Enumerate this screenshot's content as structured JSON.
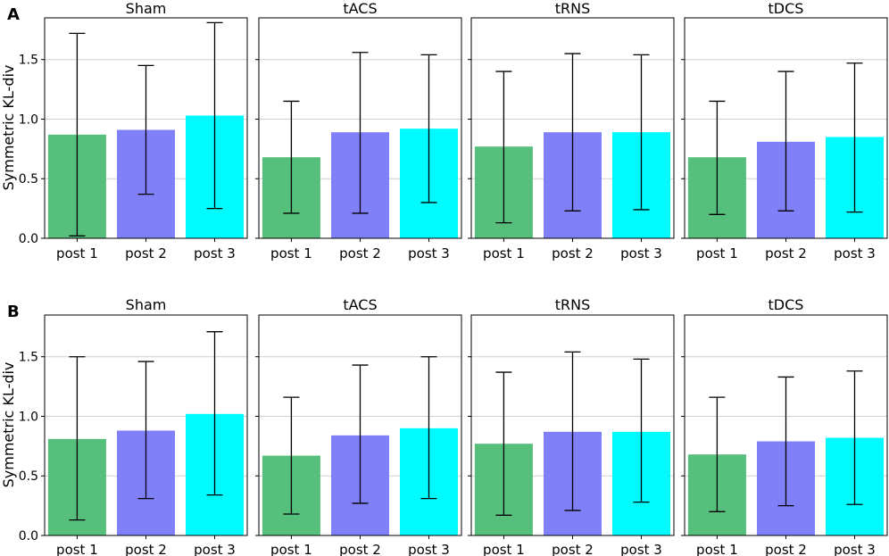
{
  "chart_data": [
    {
      "panel_letter": "A",
      "type": "bar",
      "ylabel": "Symmetric KL-div",
      "ylim": [
        0,
        1.85
      ],
      "yticks": [
        0.0,
        0.5,
        1.0,
        1.5
      ],
      "ytick_labels": [
        "0.0",
        "0.5",
        "1.0",
        "1.5"
      ],
      "grid": "horizontal",
      "categories": [
        "post 1",
        "post 2",
        "post 3"
      ],
      "colors": [
        "#55bf7b",
        "#8080f8",
        "#00fbff"
      ],
      "subplots": [
        {
          "title": "Sham",
          "values": [
            0.87,
            0.91,
            1.03
          ],
          "err_low": [
            0.02,
            0.37,
            0.25
          ],
          "err_high": [
            1.72,
            1.45,
            1.81
          ]
        },
        {
          "title": "tACS",
          "values": [
            0.68,
            0.89,
            0.92
          ],
          "err_low": [
            0.21,
            0.21,
            0.3
          ],
          "err_high": [
            1.15,
            1.56,
            1.54
          ]
        },
        {
          "title": "tRNS",
          "values": [
            0.77,
            0.89,
            0.89
          ],
          "err_low": [
            0.13,
            0.23,
            0.24
          ],
          "err_high": [
            1.4,
            1.55,
            1.54
          ]
        },
        {
          "title": "tDCS",
          "values": [
            0.68,
            0.81,
            0.85
          ],
          "err_low": [
            0.2,
            0.23,
            0.22
          ],
          "err_high": [
            1.15,
            1.4,
            1.47
          ]
        }
      ]
    },
    {
      "panel_letter": "B",
      "type": "bar",
      "ylabel": "Symmetric KL-div",
      "ylim": [
        0,
        1.85
      ],
      "yticks": [
        0.0,
        0.5,
        1.0,
        1.5
      ],
      "ytick_labels": [
        "0.0",
        "0.5",
        "1.0",
        "1.5"
      ],
      "grid": "horizontal",
      "categories": [
        "post 1",
        "post 2",
        "post 3"
      ],
      "colors": [
        "#55bf7b",
        "#8080f8",
        "#00fbff"
      ],
      "subplots": [
        {
          "title": "Sham",
          "values": [
            0.81,
            0.88,
            1.02
          ],
          "err_low": [
            0.13,
            0.31,
            0.34
          ],
          "err_high": [
            1.5,
            1.46,
            1.71
          ]
        },
        {
          "title": "tACS",
          "values": [
            0.67,
            0.84,
            0.9
          ],
          "err_low": [
            0.18,
            0.27,
            0.31
          ],
          "err_high": [
            1.16,
            1.43,
            1.5
          ]
        },
        {
          "title": "tRNS",
          "values": [
            0.77,
            0.87,
            0.87
          ],
          "err_low": [
            0.17,
            0.21,
            0.28
          ],
          "err_high": [
            1.37,
            1.54,
            1.48
          ]
        },
        {
          "title": "tDCS",
          "values": [
            0.68,
            0.79,
            0.82
          ],
          "err_low": [
            0.2,
            0.25,
            0.26
          ],
          "err_high": [
            1.16,
            1.33,
            1.38
          ]
        }
      ]
    }
  ]
}
